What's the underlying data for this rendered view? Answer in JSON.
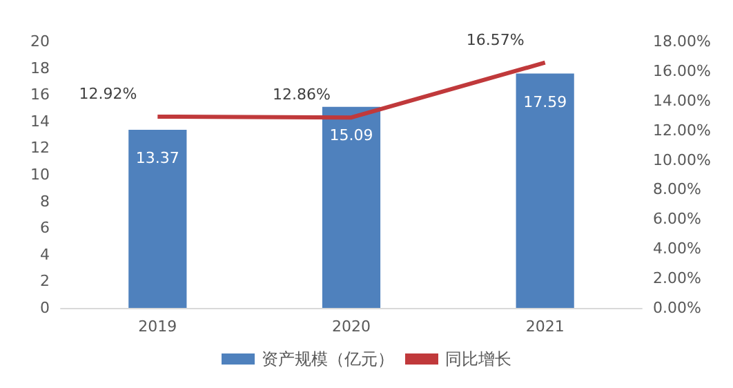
{
  "chart_data": {
    "type": "bar",
    "categories": [
      "2019",
      "2020",
      "2021"
    ],
    "series": [
      {
        "name": "资产规模（亿元）",
        "color": "#4f81bd",
        "values": [
          13.37,
          15.09,
          17.59
        ],
        "value_labels": [
          "13.37",
          "15.09",
          "17.59"
        ]
      },
      {
        "name": "同比增长",
        "type": "line",
        "axis": "y2",
        "color": "#c0393b",
        "values": [
          12.92,
          12.86,
          16.57
        ],
        "value_labels": [
          "12.92%",
          "12.86%",
          "16.57%"
        ]
      }
    ],
    "ylim": [
      0,
      20
    ],
    "yticks": [
      0,
      2,
      4,
      6,
      8,
      10,
      12,
      14,
      16,
      18,
      20
    ],
    "y2lim": [
      0,
      18
    ],
    "y2ticks": [
      {
        "value": 0,
        "label": "0.00%"
      },
      {
        "value": 2,
        "label": "2.00%"
      },
      {
        "value": 4,
        "label": "4.00%"
      },
      {
        "value": 6,
        "label": "6.00%"
      },
      {
        "value": 8,
        "label": "8.00%"
      },
      {
        "value": 10,
        "label": "10.00%"
      },
      {
        "value": 12,
        "label": "12.00%"
      },
      {
        "value": 14,
        "label": "14.00%"
      },
      {
        "value": 16,
        "label": "16.00%"
      },
      {
        "value": 18,
        "label": "18.00%"
      }
    ],
    "grid": false,
    "legend": "bottom",
    "marker": "none",
    "line_style": "solid"
  }
}
